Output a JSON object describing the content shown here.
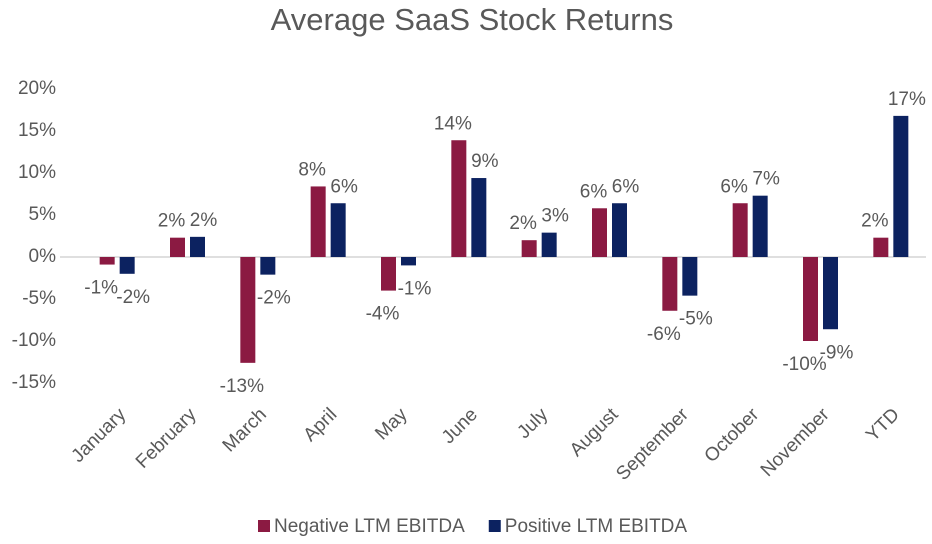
{
  "chart_data": {
    "type": "bar",
    "title": "Average SaaS Stock Returns",
    "categories": [
      "January",
      "February",
      "March",
      "April",
      "May",
      "June",
      "July",
      "August",
      "September",
      "October",
      "November",
      "YTD"
    ],
    "series": [
      {
        "name": "Negative LTM EBITDA",
        "color": "#8b1a42",
        "values": [
          -0.9,
          2.3,
          -12.6,
          8.4,
          -4.0,
          13.9,
          2.0,
          5.8,
          -6.4,
          6.4,
          -10.0,
          2.3
        ],
        "value_labels": [
          "-1%",
          "2%",
          "-13%",
          "8%",
          "-4%",
          "14%",
          "2%",
          "6%",
          "-6%",
          "6%",
          "-10%",
          "2%"
        ]
      },
      {
        "name": "Positive LTM EBITDA",
        "color": "#0c2260",
        "values": [
          -2.0,
          2.4,
          -2.1,
          6.4,
          -1.0,
          9.4,
          2.9,
          6.4,
          -4.6,
          7.3,
          -8.6,
          16.8
        ],
        "value_labels": [
          "-2%",
          "2%",
          "-2%",
          "6%",
          "-1%",
          "9%",
          "3%",
          "6%",
          "-5%",
          "7%",
          "-9%",
          "17%"
        ]
      }
    ],
    "ylim": [
      -15,
      20
    ],
    "yticks": [
      {
        "value": -15,
        "label": "-15%"
      },
      {
        "value": -10,
        "label": "-10%"
      },
      {
        "value": -5,
        "label": "-5%"
      },
      {
        "value": 0,
        "label": "0%"
      },
      {
        "value": 5,
        "label": "5%"
      },
      {
        "value": 10,
        "label": "10%"
      },
      {
        "value": 15,
        "label": "15%"
      },
      {
        "value": 20,
        "label": "20%"
      }
    ],
    "legend": "bottom"
  }
}
